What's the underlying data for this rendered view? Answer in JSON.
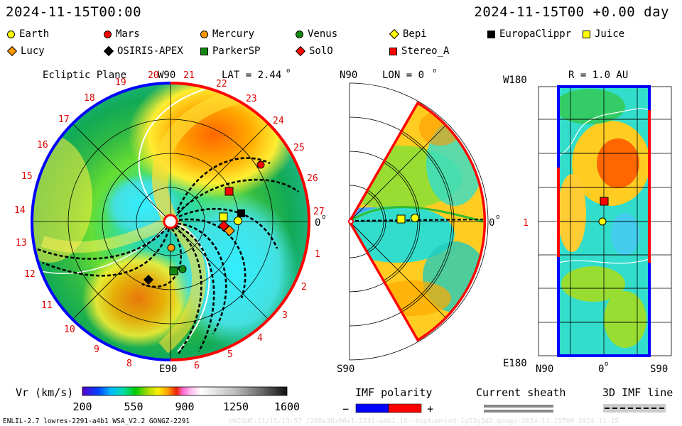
{
  "header": {
    "datetime_left": "2024-11-15T00:00",
    "datetime_right": "2024-11-15T00 +0.00 day"
  },
  "legend": [
    {
      "name": "Earth",
      "shape": "circle",
      "color": "#ffff00"
    },
    {
      "name": "Mars",
      "shape": "circle",
      "color": "#ff0000"
    },
    {
      "name": "Mercury",
      "shape": "circle",
      "color": "#ff9900"
    },
    {
      "name": "Venus",
      "shape": "circle",
      "color": "#118811"
    },
    {
      "name": "Bepi",
      "shape": "diamond",
      "color": "#ffff00"
    },
    {
      "name": "EuropaClippr",
      "shape": "square",
      "color": "#000000"
    },
    {
      "name": "Juice",
      "shape": "square",
      "color": "#ffff00"
    },
    {
      "name": "Lucy",
      "shape": "diamond",
      "color": "#ff9900"
    },
    {
      "name": "OSIRIS-APEX",
      "shape": "diamond",
      "color": "#000000"
    },
    {
      "name": "ParkerSP",
      "shape": "square",
      "color": "#118811"
    },
    {
      "name": "SolO",
      "shape": "diamond",
      "color": "#ff0000"
    },
    {
      "name": "Stereo_A",
      "shape": "square",
      "color": "#ff0000"
    }
  ],
  "ecliptic": {
    "title": "Ecliptic Plane",
    "top_label": "W90",
    "bottom_label": "E90",
    "lat_label": "LAT = 2.44",
    "lat_sup": "o",
    "zero_label": "0",
    "zero_sup": "o",
    "sectors": [
      "1",
      "2",
      "3",
      "4",
      "5",
      "6",
      "8",
      "9",
      "10",
      "11",
      "12",
      "13",
      "14",
      "15",
      "16",
      "17",
      "18",
      "19",
      "20",
      "21",
      "22",
      "23",
      "24",
      "25",
      "26",
      "27"
    ]
  },
  "meridional": {
    "top_label": "N90",
    "bottom_label": "S90",
    "lon_label": "LON = 0",
    "lon_sup": "o",
    "zero_label": "0",
    "zero_sup": "o"
  },
  "radial": {
    "title": "R = 1.0 AU",
    "top_left": "W180",
    "bottom_left": "E180",
    "mid_left": "1",
    "x_left": "N90",
    "x_mid": "0",
    "x_mid_sup": "o",
    "x_right": "S90"
  },
  "colorbar": {
    "label": "Vr (km/s)",
    "ticks": [
      "200",
      "550",
      "900",
      "1250",
      "1600"
    ]
  },
  "imf": {
    "title": "IMF polarity",
    "minus": "−",
    "plus": "+",
    "colors": {
      "negative": "#0000ff",
      "positive": "#ff0000"
    }
  },
  "sheath": {
    "title": "Current sheath"
  },
  "imf3d": {
    "title": "3D IMF line"
  },
  "footer": {
    "info": "ENLIL-2.7 lowres-2291-a4b1 WSA_V2.2 GONGZ-2291",
    "watermark": "UNIQUE:11/15/13:57 /266x30x90x1-2231-a4b1.16--noptumnled-1g53g3d2.gongz-2024-11-15T00 2024-11-15"
  }
}
